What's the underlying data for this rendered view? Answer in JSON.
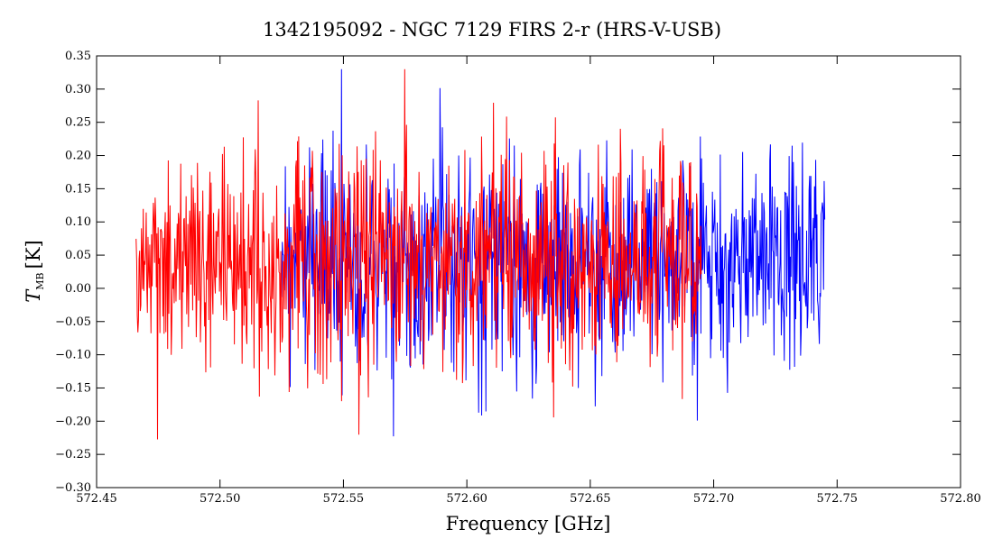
{
  "chart_data": {
    "type": "line",
    "title": "1342195092 - NGC 7129 FIRS 2-r (HRS-V-USB)",
    "xlabel": "Frequency [GHz]",
    "ylabel_main": "T",
    "ylabel_sub": "MB",
    "ylabel_unit": "[K]",
    "xlim": [
      572.45,
      572.8
    ],
    "ylim": [
      -0.3,
      0.35
    ],
    "xticks": [
      "572.45",
      "572.50",
      "572.55",
      "572.60",
      "572.65",
      "572.70",
      "572.75",
      "572.80"
    ],
    "yticks": [
      "-0.30",
      "-0.25",
      "-0.20",
      "-0.15",
      "-0.10",
      "-0.05",
      "0.00",
      "0.05",
      "0.10",
      "0.15",
      "0.20",
      "0.25",
      "0.30",
      "0.35"
    ],
    "grid": false,
    "legend": "none",
    "series": [
      {
        "color": "#0000ff",
        "x_range": [
          572.525,
          572.745
        ],
        "mean": 0.04,
        "std": 0.085,
        "n_points": 900
      },
      {
        "color": "#ff0000",
        "x_range": [
          572.466,
          572.695
        ],
        "mean": 0.045,
        "std": 0.08,
        "n_points": 950
      }
    ]
  }
}
